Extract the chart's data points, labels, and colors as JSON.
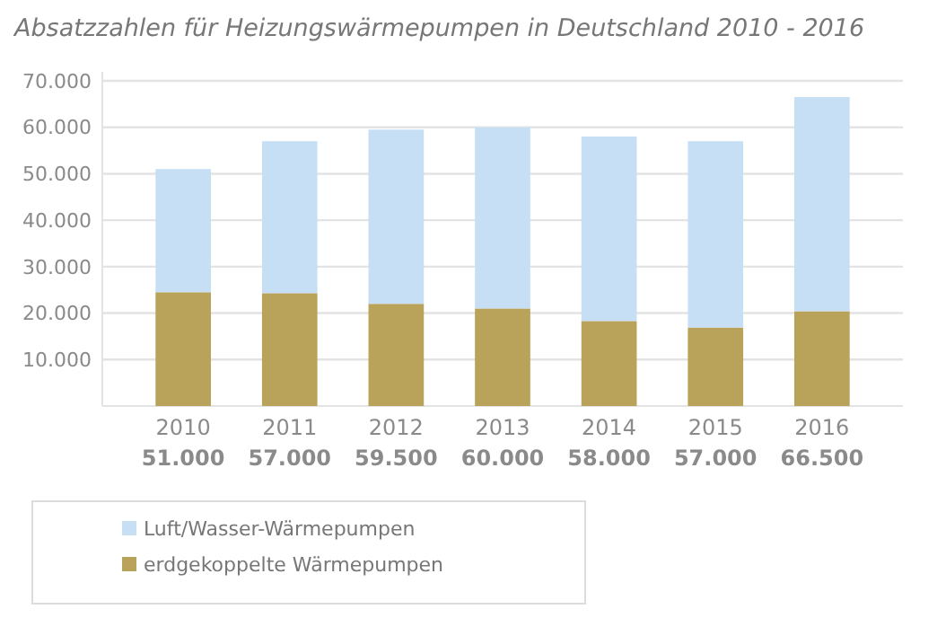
{
  "chart_data": {
    "type": "bar",
    "title": "Absatzzahlen für Heizungswärmepumpen in Deutschland 2010 - 2016",
    "categories": [
      "2010",
      "2011",
      "2012",
      "2013",
      "2014",
      "2015",
      "2016"
    ],
    "stacked": true,
    "series": [
      {
        "name": "erdgekoppelte Wärmepumpen",
        "color": "#b9a25a",
        "values": [
          24500,
          24300,
          22000,
          21000,
          18300,
          16900,
          20400
        ]
      },
      {
        "name": "Luft/Wasser-Wärmepumpen",
        "color": "#c6dff5",
        "values": [
          26500,
          32700,
          37500,
          39000,
          39700,
          40100,
          46100
        ]
      }
    ],
    "totals": [
      "51.000",
      "57.000",
      "59.500",
      "60.000",
      "58.000",
      "57.000",
      "66.500"
    ],
    "ylim": [
      0,
      70000
    ],
    "yticks": [
      {
        "value": 10000,
        "label": "10.000"
      },
      {
        "value": 20000,
        "label": "20.000"
      },
      {
        "value": 30000,
        "label": "30.000"
      },
      {
        "value": 40000,
        "label": "40.000"
      },
      {
        "value": 50000,
        "label": "50.000"
      },
      {
        "value": 60000,
        "label": "60.000"
      },
      {
        "value": 70000,
        "label": "70.000"
      }
    ],
    "grid": "y",
    "legend": "bottom left"
  }
}
